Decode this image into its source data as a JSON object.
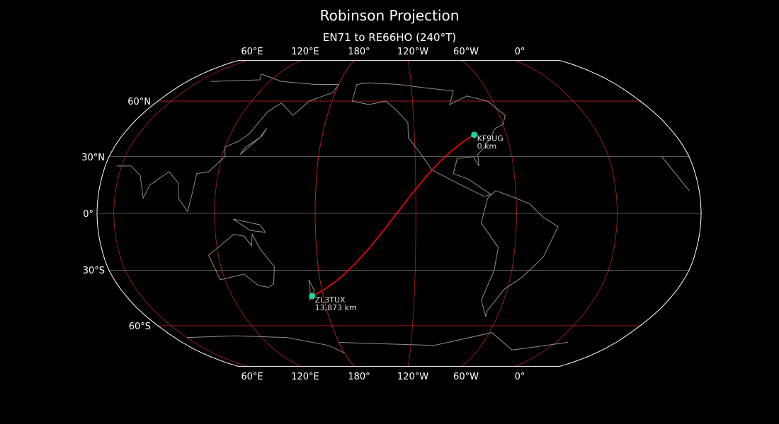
{
  "title": "Robinson Projection",
  "subtitle": "EN71 to RE66HO (240°T)",
  "map": {
    "projection": "Robinson",
    "central_longitude": -130,
    "colors": {
      "background": "#000000",
      "coastline": "#8c8c8c",
      "graticule_major": "#b22222",
      "graticule_minor": "#707070",
      "path": "#ff0000",
      "marker": "#19d3a2",
      "border": "#ffffff"
    },
    "lon_labels": [
      "60°E",
      "120°E",
      "180°",
      "120°W",
      "60°W",
      "0°"
    ],
    "lat_labels": [
      "60°N",
      "30°N",
      "0°",
      "30°S",
      "60°S"
    ],
    "stations": [
      {
        "call": "KF9UG",
        "distance": "0 km",
        "lat": 41.5,
        "lon": -81.0
      },
      {
        "call": "ZL3TUX",
        "distance": "13,873 km",
        "lat": -43.6,
        "lon": 172.6
      }
    ]
  }
}
